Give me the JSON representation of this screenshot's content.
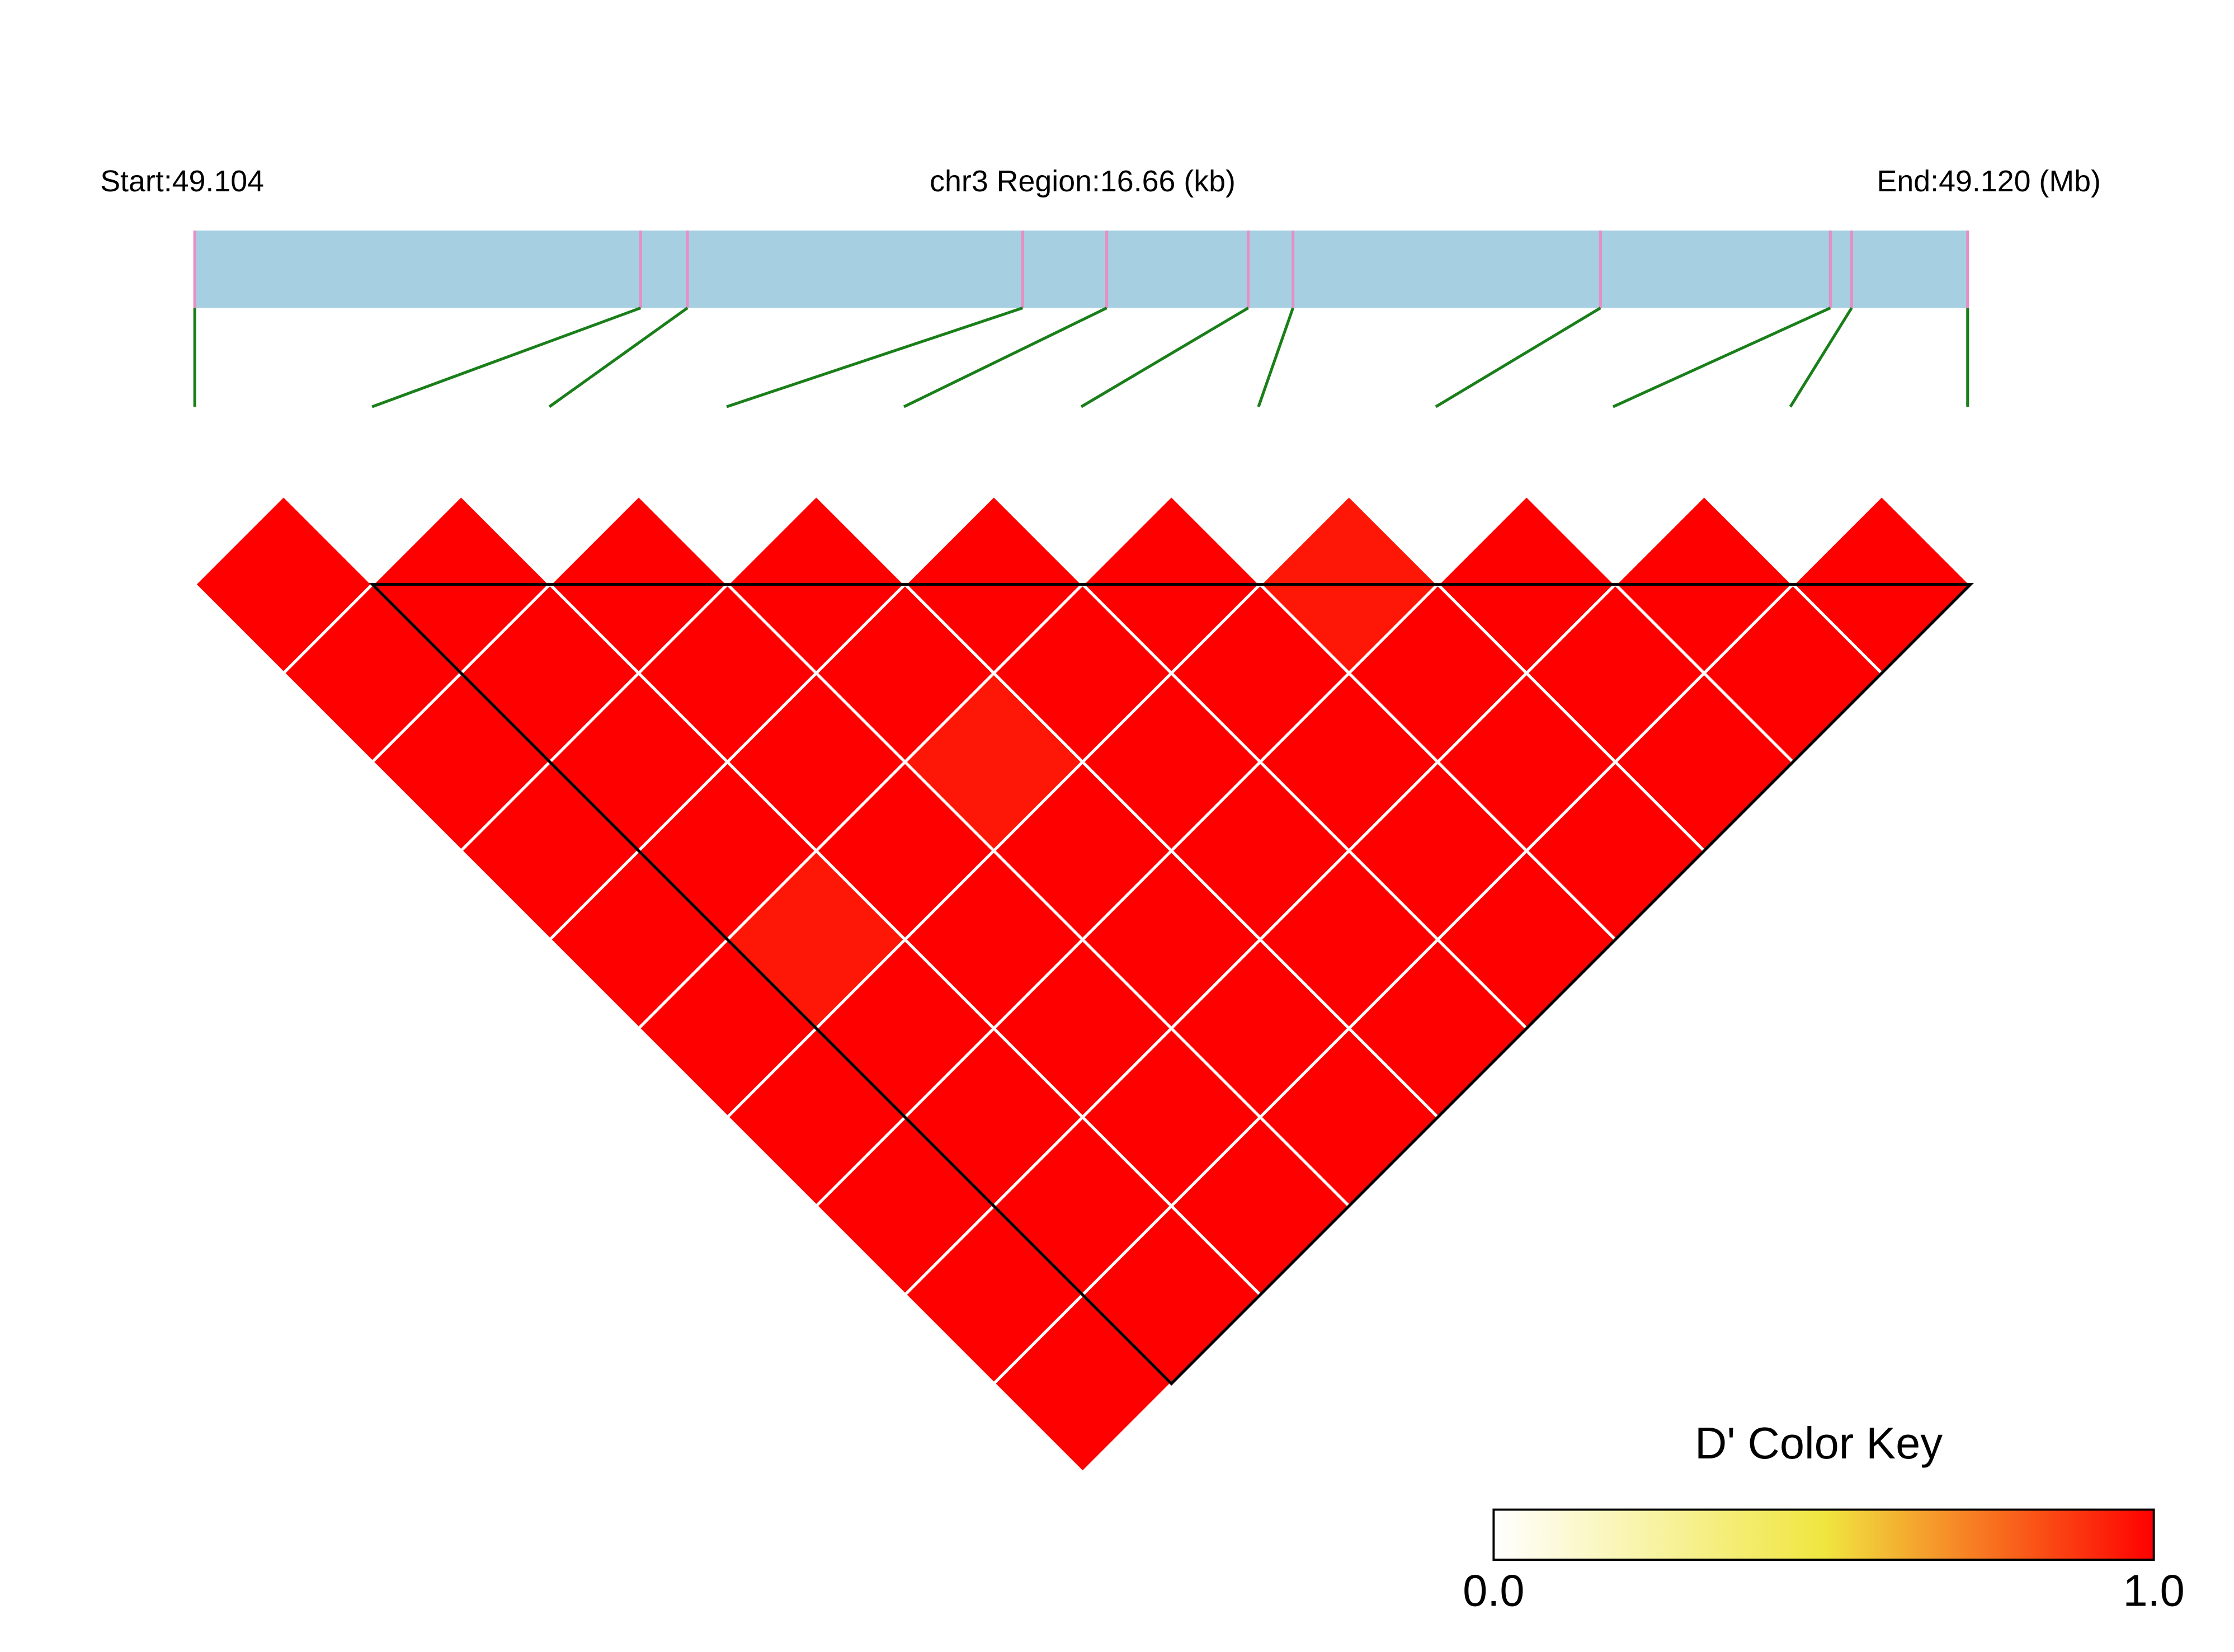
{
  "chart_data": {
    "type": "ld_heatmap",
    "start_label": "Start:49.104",
    "region_label": "chr3 Region:16.66 (kb)",
    "end_label": "End:49.120 (Mb)",
    "x": [
      0,
      4.19,
      4.63,
      7.78,
      8.57,
      9.9,
      10.32,
      13.21,
      15.37,
      15.57,
      16.66
    ],
    "xlim": [
      0,
      16.66
    ],
    "values": [
      [
        1,
        1,
        1,
        1,
        1,
        1,
        1,
        1,
        1,
        1
      ],
      [
        1,
        1,
        1,
        1,
        0.95,
        1,
        1,
        1,
        1
      ],
      [
        1,
        1,
        1,
        1,
        1,
        1,
        1,
        1
      ],
      [
        1,
        1,
        0.95,
        1,
        1,
        1,
        1
      ],
      [
        1,
        1,
        1,
        1,
        1,
        1
      ],
      [
        1,
        1,
        1,
        1,
        1
      ],
      [
        0.95,
        1,
        1,
        1
      ],
      [
        1,
        1,
        1
      ],
      [
        1,
        1
      ],
      [
        1
      ]
    ],
    "blocks": [
      [
        1,
        10
      ]
    ],
    "legend_title": "D' Color Key",
    "color_stops": [
      {
        "value": 0,
        "color": "#ffffff"
      },
      {
        "value": 0.5,
        "color": "#f0e640"
      },
      {
        "value": 1,
        "color": "#ff0000"
      }
    ],
    "clim": [
      0,
      1
    ],
    "cticks": [
      {
        "value": 0,
        "label": "0.0"
      },
      {
        "value": 1,
        "label": "1.0"
      }
    ],
    "bar_color": "#a6cfe2",
    "marker_color": "#e58fc4",
    "link_color": "#1a7f1a",
    "block_color": "#000000",
    "cell_border": "#ffffff"
  }
}
